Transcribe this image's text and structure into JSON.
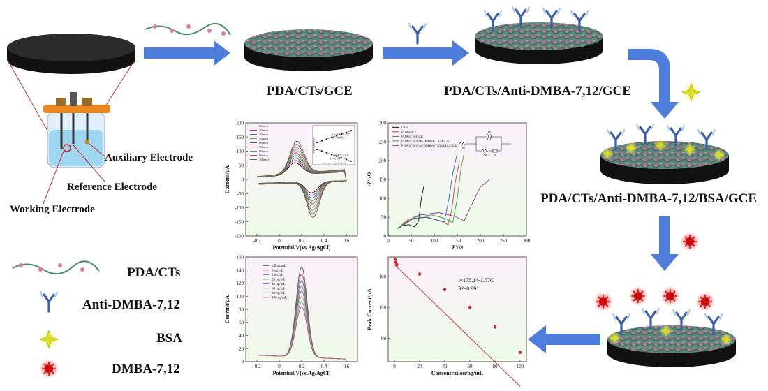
{
  "colors": {
    "arrow": "#4f7ddc",
    "electrode_top": "#1e1e1e",
    "film_pink": "#e07aa8",
    "film_green": "#5a9a7a",
    "antibody": "#3a5fa8",
    "bsa": "#d8e020",
    "dmba": "#e01818",
    "panel_bg": "#f6fff0",
    "fit_line": "#c83030"
  },
  "electrode_labels": {
    "auxiliary": "Auxiliary Electrode",
    "reference": "Reference Electrode",
    "working": "Working Electrode"
  },
  "steps": [
    {
      "label": "PDA/CTs/GCE"
    },
    {
      "label": "PDA/CTs/Anti-DMBA-7,12/GCE"
    },
    {
      "label": "PDA/CTs/Anti-DMBA-7,12/BSA/GCE"
    }
  ],
  "legend": [
    {
      "icon": "pda-cts-icon",
      "label": "PDA/CTs"
    },
    {
      "icon": "antibody-icon",
      "label": "Anti-DMBA-7,12"
    },
    {
      "icon": "bsa-icon",
      "label": "BSA"
    },
    {
      "icon": "dmba-icon",
      "label": "DMBA-7,12"
    }
  ],
  "chart_data": [
    {
      "type": "line",
      "id": "cv",
      "xlabel": "Potential/V(vs.Ag/AgCl)",
      "ylabel": "Current/μA",
      "xlim": [
        -0.3,
        0.7
      ],
      "ylim": [
        -200,
        200
      ],
      "xticks": [
        -0.2,
        0.0,
        0.2,
        0.4,
        0.6
      ],
      "yticks": [
        -200,
        -150,
        -100,
        -50,
        0,
        50,
        100,
        150,
        200
      ],
      "series": [
        {
          "name": "20mv/s"
        },
        {
          "name": "30mv/s"
        },
        {
          "name": "40mv/s"
        },
        {
          "name": "50mv/s"
        },
        {
          "name": "60mv/s"
        },
        {
          "name": "70mv/s"
        },
        {
          "name": "80mv/s"
        },
        {
          "name": "90mv/s"
        },
        {
          "name": "100mv/s"
        }
      ],
      "inset": {
        "xlabel": "Scan rate^1/2 (mV/s)^1/2",
        "ylabel": "Peak Current/μA",
        "fit_top": "I = 26.92 V + 7.71",
        "r2_top": "R² = 0.990",
        "fit_bottom": "I = -30.89 V + 3.23",
        "r2_bottom": "R² = 0.994"
      }
    },
    {
      "type": "line",
      "id": "eis",
      "xlabel": "Z'/Ω",
      "ylabel": "-Z''/Ω",
      "xlim": [
        0,
        300
      ],
      "ylim": [
        0,
        300
      ],
      "xticks": [
        0,
        50,
        100,
        150,
        200,
        250,
        300
      ],
      "yticks": [
        0,
        50,
        100,
        150,
        200,
        250,
        300
      ],
      "series": [
        {
          "name": "GCE",
          "color": "#1a1a1a",
          "points": [
            [
              20,
              20
            ],
            [
              30,
              28
            ],
            [
              45,
              30
            ],
            [
              58,
              24
            ],
            [
              66,
              40
            ],
            [
              72,
              100
            ],
            [
              78,
              135
            ]
          ]
        },
        {
          "name": "PDA/GCE",
          "color": "#c83c3c",
          "points": [
            [
              20,
              20
            ],
            [
              45,
              45
            ],
            [
              80,
              50
            ],
            [
              115,
              40
            ],
            [
              130,
              30
            ],
            [
              138,
              70
            ],
            [
              145,
              140
            ],
            [
              155,
              200
            ]
          ]
        },
        {
          "name": "PDA/CTs/GCE",
          "color": "#3a62c8",
          "points": [
            [
              22,
              20
            ],
            [
              50,
              45
            ],
            [
              85,
              50
            ],
            [
              110,
              40
            ],
            [
              122,
              38
            ],
            [
              132,
              100
            ],
            [
              140,
              165
            ],
            [
              150,
              220
            ]
          ]
        },
        {
          "name": "PDA/CTs/Anti-DMBA-7,12/GCE",
          "color": "#3aa83a",
          "points": [
            [
              22,
              22
            ],
            [
              55,
              50
            ],
            [
              95,
              56
            ],
            [
              125,
              46
            ],
            [
              140,
              35
            ],
            [
              150,
              100
            ],
            [
              158,
              180
            ],
            [
              165,
              220
            ]
          ]
        },
        {
          "name": "PDA/CTs/Anti-DMBA-7,12/BSA/GCE",
          "color": "#8a3a8a",
          "points": [
            [
              25,
              22
            ],
            [
              65,
              55
            ],
            [
              110,
              62
            ],
            [
              145,
              52
            ],
            [
              165,
              40
            ],
            [
              180,
              80
            ],
            [
              200,
              130
            ],
            [
              220,
              150
            ]
          ]
        }
      ],
      "circuit": {
        "labels": [
          "CPE",
          "Rs",
          "Rct",
          "W"
        ]
      }
    },
    {
      "type": "line",
      "id": "dpv",
      "xlabel": "Potential/V(vs.Ag/AgCl)",
      "ylabel": "Current/μA",
      "xlim": [
        -0.3,
        0.7
      ],
      "ylim": [
        0,
        160
      ],
      "xticks": [
        -0.2,
        0.0,
        0.2,
        0.4,
        0.6
      ],
      "yticks": [
        0,
        20,
        40,
        60,
        80,
        100,
        120,
        140,
        160
      ],
      "series": [
        {
          "name": "0.5 ng/mL",
          "peak": 143
        },
        {
          "name": "1 ng/mL",
          "peak": 132
        },
        {
          "name": "2 ng/mL",
          "peak": 122
        },
        {
          "name": "20 ng/mL",
          "peak": 114
        },
        {
          "name": "40 ng/mL",
          "peak": 106
        },
        {
          "name": "60 ng/mL",
          "peak": 98
        },
        {
          "name": "80 ng/mL",
          "peak": 90
        },
        {
          "name": "100 ng/mL",
          "peak": 82
        }
      ]
    },
    {
      "type": "scatter",
      "id": "calib",
      "xlabel": "Concentration/ng/mL",
      "ylabel": "Peak Current/μA",
      "xlim": [
        -5,
        105
      ],
      "ylim": [
        50,
        185
      ],
      "xticks": [
        0,
        20,
        40,
        60,
        80,
        100
      ],
      "yticks": [
        80,
        120,
        160
      ],
      "x": [
        0.5,
        1,
        2,
        20,
        40,
        60,
        80,
        100
      ],
      "y": [
        182,
        178,
        175,
        163,
        143,
        120,
        95,
        62
      ],
      "fit": {
        "slope": -1.57,
        "intercept": 175.14
      },
      "annotation": "I=175.14-1.57C",
      "r2": "R²=0.991"
    }
  ]
}
